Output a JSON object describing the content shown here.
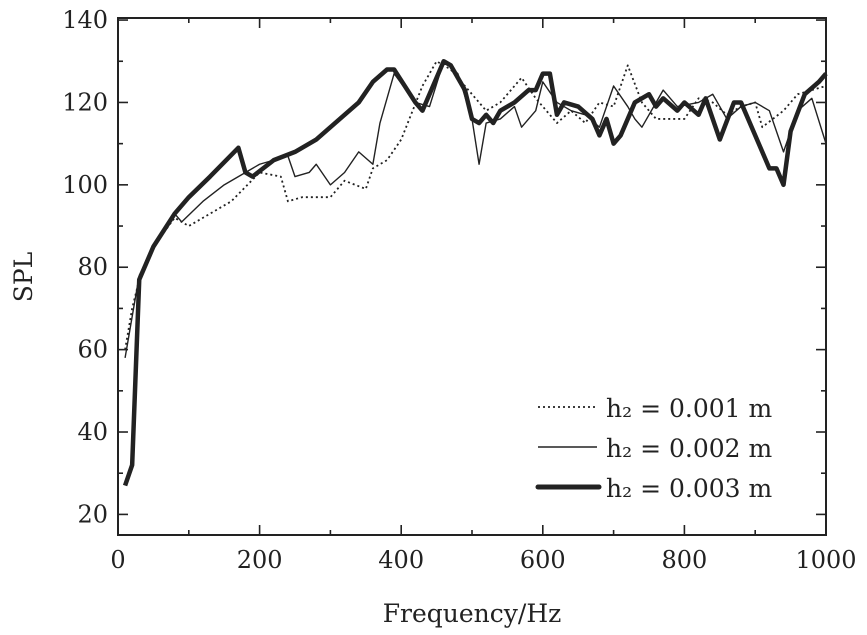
{
  "chart_data": {
    "type": "line",
    "title": "",
    "xlabel": "Frequency/Hz",
    "ylabel": "SPL",
    "xlim": [
      0,
      1000
    ],
    "ylim": [
      15,
      140.5
    ],
    "xticks": [
      0,
      200,
      400,
      600,
      800,
      1000
    ],
    "yticks": [
      20,
      40,
      60,
      80,
      100,
      120,
      140
    ],
    "grid": false,
    "legend_position": "bottom-right",
    "series": [
      {
        "name": "h₂ = 0.001 m",
        "style": "dotted",
        "x": [
          10,
          20,
          30,
          50,
          80,
          100,
          130,
          160,
          200,
          230,
          240,
          260,
          300,
          320,
          350,
          360,
          380,
          400,
          430,
          450,
          470,
          500,
          520,
          540,
          570,
          590,
          620,
          640,
          660,
          680,
          700,
          720,
          740,
          760,
          780,
          800,
          820,
          840,
          860,
          880,
          900,
          910,
          940,
          960,
          980,
          1000
        ],
        "y": [
          60,
          70,
          77,
          85,
          92,
          90,
          93,
          96,
          103,
          102,
          96,
          97,
          97,
          101,
          99,
          104,
          106,
          111,
          124,
          130,
          128,
          122,
          118,
          120,
          126,
          121,
          115,
          118,
          115,
          120,
          119,
          129,
          120,
          116,
          116,
          116,
          121,
          120,
          117,
          119,
          120,
          114,
          118,
          122,
          123,
          124
        ]
      },
      {
        "name": "h₂ = 0.002 m",
        "style": "thin",
        "x": [
          10,
          20,
          30,
          50,
          80,
          90,
          120,
          150,
          180,
          200,
          220,
          240,
          250,
          270,
          280,
          300,
          320,
          340,
          360,
          370,
          390,
          420,
          440,
          460,
          480,
          500,
          510,
          520,
          540,
          560,
          570,
          590,
          600,
          620,
          640,
          660,
          680,
          700,
          720,
          730,
          740,
          770,
          790,
          820,
          840,
          860,
          880,
          900,
          920,
          940,
          960,
          980,
          1000
        ],
        "y": [
          58,
          68,
          78,
          85,
          93,
          91,
          96,
          100,
          103,
          105,
          106,
          107,
          102,
          103,
          105,
          100,
          103,
          108,
          105,
          115,
          127,
          120,
          119,
          130,
          127,
          116,
          105,
          115,
          116,
          119,
          114,
          118,
          125,
          120,
          118,
          117,
          114,
          124,
          119,
          116,
          114,
          123,
          119,
          120,
          122,
          116,
          119,
          120,
          118,
          108,
          118,
          121,
          110
        ]
      },
      {
        "name": "h₂ = 0.003 m",
        "style": "thick",
        "x": [
          10,
          20,
          30,
          50,
          80,
          100,
          130,
          170,
          180,
          190,
          220,
          250,
          280,
          300,
          340,
          360,
          380,
          390,
          420,
          430,
          460,
          470,
          490,
          500,
          510,
          520,
          530,
          540,
          560,
          580,
          590,
          600,
          610,
          620,
          630,
          650,
          670,
          680,
          690,
          700,
          710,
          730,
          750,
          760,
          770,
          790,
          800,
          820,
          830,
          850,
          870,
          880,
          900,
          920,
          930,
          940,
          950,
          970,
          990,
          1000
        ],
        "y": [
          27,
          32,
          77,
          85,
          93,
          97,
          102,
          109,
          103,
          102,
          106,
          108,
          111,
          114,
          120,
          125,
          128,
          128,
          120,
          118,
          130,
          129,
          123,
          116,
          115,
          117,
          115,
          118,
          120,
          123,
          123,
          127,
          127,
          117,
          120,
          119,
          116,
          112,
          116,
          110,
          112,
          120,
          122,
          119,
          121,
          118,
          120,
          117,
          121,
          111,
          120,
          120,
          112,
          104,
          104,
          100,
          113,
          122,
          125,
          127
        ]
      }
    ]
  }
}
